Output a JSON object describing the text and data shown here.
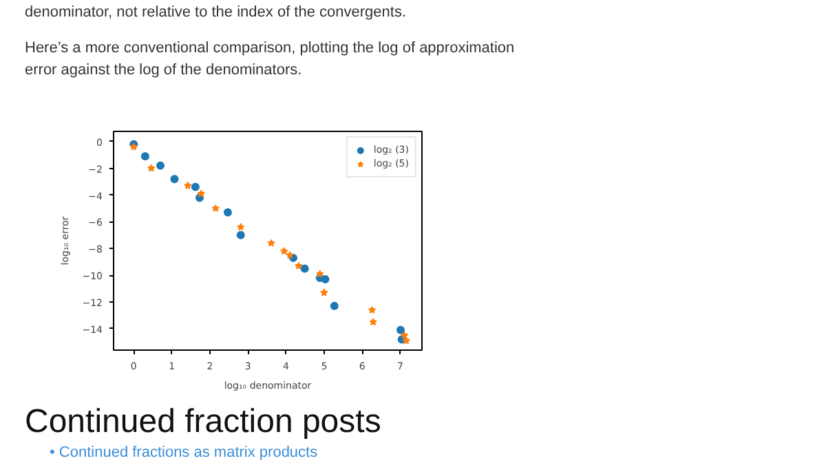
{
  "chart_data": {
    "type": "scatter",
    "xlabel": "log₁₀ denominator",
    "ylabel": "log₁₀ error",
    "annotations": [
      "denominator, not relative to the index of the convergents.",
      "Here’s a more conventional comparison, plotting the log of approximation error against the log of the denominators.",
      "Continued fraction posts",
      "• Continued fractions as matrix products"
    ],
    "series": [
      {
        "name": "log₂ (3)",
        "color": "#1f77b4",
        "marker": "circle",
        "x": [
          0,
          0.3,
          0.7,
          1.07,
          1.62,
          1.73,
          2.47,
          2.81,
          4.19,
          4.49,
          4.89,
          5.03,
          5.27,
          7.01,
          7.04
        ],
        "values": [
          -0.2,
          -1.1,
          -1.8,
          -2.8,
          -3.4,
          -4.2,
          -5.3,
          -7.0,
          -8.7,
          -9.5,
          -10.2,
          -10.3,
          -12.3,
          -14.1,
          -14.8
        ]
      },
      {
        "name": "log₂ (5)",
        "color": "#ff7f0e",
        "marker": "star",
        "x": [
          0,
          0.46,
          1.42,
          1.77,
          2.15,
          2.81,
          3.61,
          3.95,
          4.1,
          4.33,
          4.89,
          5.0,
          6.26,
          6.29,
          7.11,
          7.16
        ],
        "values": [
          -0.4,
          -2.0,
          -3.3,
          -3.9,
          -5.0,
          -6.4,
          -7.6,
          -8.2,
          -8.5,
          -9.3,
          -9.9,
          -11.3,
          -12.6,
          -13.5,
          -14.5,
          -14.9
        ]
      }
    ],
    "xlim": [
      -0.53,
      7.57
    ],
    "ylim": [
      -15.6,
      0.76
    ],
    "xticks": [
      0,
      1,
      2,
      3,
      4,
      5,
      6,
      7
    ],
    "yticks": [
      0,
      {
        "value": -2,
        "label": "−2"
      },
      {
        "value": -4,
        "label": "−4"
      },
      {
        "value": -6,
        "label": "−6"
      },
      {
        "value": -8,
        "label": "−8"
      },
      {
        "value": -10,
        "label": "−10"
      },
      {
        "value": -12,
        "label": "−12"
      },
      {
        "value": -14,
        "label": "−14"
      }
    ],
    "grid": false,
    "legend": "top right"
  }
}
